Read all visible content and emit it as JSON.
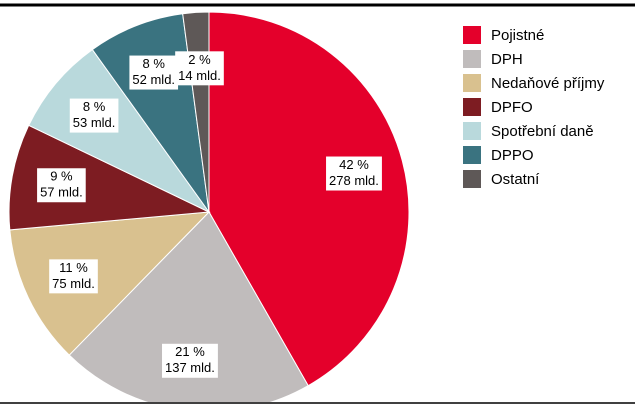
{
  "chart_data": {
    "type": "pie",
    "categories": [
      "Pojistné",
      "DPH",
      "Nedaňové příjmy",
      "DPFO",
      "Spotřební daně",
      "DPPO",
      "Ostatní"
    ],
    "colors": [
      "#e4002b",
      "#c0bcbc",
      "#d9c18f",
      "#7d1c22",
      "#b9d9dc",
      "#3a7380",
      "#5e5857"
    ],
    "values": [
      42,
      21,
      11,
      9,
      8,
      8,
      2
    ],
    "value_labels": [
      "42 %",
      "21 %",
      "11 %",
      "9 %",
      "8 %",
      "8 %",
      "2 %"
    ],
    "amounts": [
      278,
      137,
      75,
      57,
      53,
      52,
      14
    ],
    "amount_labels": [
      "278 mld.",
      "137 mld.",
      "75 mld.",
      "57 mld.",
      "53 mld.",
      "52 mld.",
      "14 mld."
    ]
  }
}
